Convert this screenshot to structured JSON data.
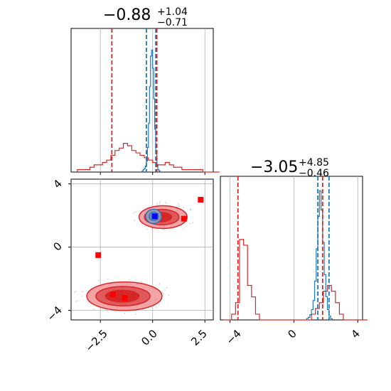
{
  "chart_data": {
    "type": "corner",
    "titles": [
      {
        "main": "−0.88",
        "sup": "+1.04",
        "sub": "−0.71"
      },
      {
        "main": "−3.05",
        "sup": "+4.85",
        "sub": "−0.46"
      }
    ],
    "param_ranges": {
      "p1": [
        -3.9,
        2.9
      ],
      "p2": [
        -4.6,
        4.3
      ]
    },
    "ticks": {
      "p1": {
        "values": [
          -2.5,
          0.0,
          2.5
        ],
        "labels": [
          "−2.5",
          "0.0",
          "2.5"
        ]
      },
      "p2": {
        "values": [
          -4,
          0,
          4
        ],
        "labels": [
          "−4",
          "0",
          "4"
        ]
      }
    },
    "grid": true,
    "colors": {
      "red": "#d62728",
      "blue": "#1f77b4",
      "red_fill": "#f4a4a6",
      "red_fill_dark": "#e05a5c",
      "blue_fill": "#8fb4d8"
    },
    "series": [
      {
        "color": "red",
        "hist_p1": {
          "edges_start": -3.6,
          "bin_width": 0.2,
          "counts": [
            1,
            1,
            1,
            2,
            3,
            3,
            4,
            5,
            7,
            9,
            10,
            12,
            11,
            9,
            8,
            7,
            6,
            5,
            4,
            3,
            3,
            4,
            3,
            2,
            2,
            1,
            1,
            1,
            1,
            1,
            0,
            0,
            0,
            0
          ]
        },
        "hist_p2": {
          "edges_start": -4.4,
          "bin_width": 0.25,
          "counts": [
            0,
            0,
            1,
            3,
            14,
            13,
            6,
            4,
            1,
            0,
            0,
            0,
            0,
            0,
            0,
            0,
            0,
            0,
            0,
            0,
            0,
            0,
            1,
            2,
            3,
            5,
            6,
            5,
            3,
            1,
            0,
            0,
            0,
            0,
            0,
            0
          ]
        },
        "quantiles_p1": [
          -1.95,
          0.2
        ],
        "quantiles_p2": [
          -3.5,
          1.8
        ],
        "modes": [
          {
            "center": [
              0.5,
              1.9
            ],
            "radius": [
              1.15,
              0.72
            ]
          },
          {
            "center": [
              -1.35,
              -3.1
            ],
            "radius": [
              1.8,
              0.9
            ]
          }
        ]
      },
      {
        "color": "blue",
        "hist_p1": {
          "edges_start": -0.5,
          "bin_width": 0.05,
          "counts": [
            1,
            2,
            3,
            5,
            9,
            20,
            40,
            70,
            95,
            100,
            85,
            60,
            35,
            15,
            6,
            2,
            1
          ]
        },
        "hist_p2": {
          "edges_start": 0.8,
          "bin_width": 0.1,
          "counts": [
            1,
            2,
            4,
            8,
            15,
            30,
            55,
            80,
            100,
            85,
            60,
            35,
            18,
            8,
            3,
            1
          ]
        },
        "quantiles_p1": [
          -0.3,
          0.15
        ],
        "quantiles_p2": [
          1.5,
          2.2
        ],
        "mode": {
          "center": [
            0.05,
            1.95
          ],
          "radius": [
            0.38,
            0.45
          ]
        }
      }
    ],
    "markers": [
      {
        "color": "red",
        "x": 2.3,
        "y": 3.0
      },
      {
        "color": "red",
        "x": 1.5,
        "y": 1.8
      },
      {
        "color": "red",
        "x": -2.6,
        "y": -0.5
      },
      {
        "color": "red",
        "x": -1.9,
        "y": -3.0
      },
      {
        "color": "red",
        "x": -1.35,
        "y": -3.2
      },
      {
        "color": "blue",
        "x": 0.1,
        "y": 1.95
      }
    ]
  }
}
